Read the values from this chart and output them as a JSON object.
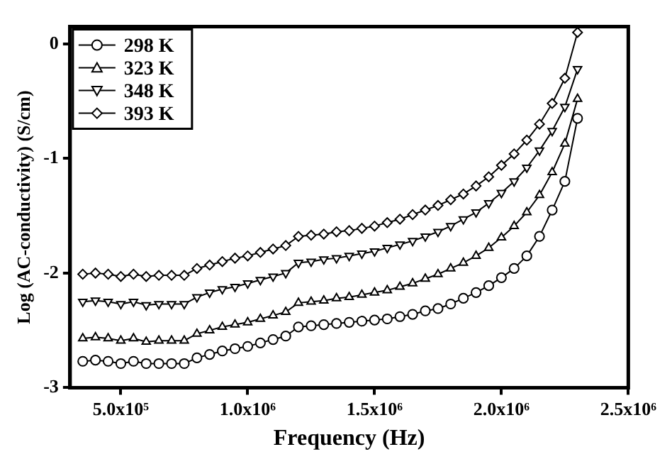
{
  "chart_data": {
    "type": "line",
    "xlabel": "Frequency (Hz)",
    "ylabel": "Log (AC-conductivity) (S/cm)",
    "x": [
      350000,
      400000,
      450000,
      500000,
      550000,
      600000,
      650000,
      700000,
      750000,
      800000,
      850000,
      900000,
      950000,
      1000000,
      1050000,
      1100000,
      1150000,
      1200000,
      1250000,
      1300000,
      1350000,
      1400000,
      1450000,
      1500000,
      1550000,
      1600000,
      1650000,
      1700000,
      1750000,
      1800000,
      1850000,
      1900000,
      1950000,
      2000000,
      2050000,
      2100000,
      2150000,
      2200000,
      2250000,
      2300000
    ],
    "series": [
      {
        "name": "298 K",
        "color": "#000000",
        "marker": "circle",
        "values": [
          -2.77,
          -2.76,
          -2.77,
          -2.79,
          -2.77,
          -2.79,
          -2.79,
          -2.79,
          -2.79,
          -2.74,
          -2.71,
          -2.68,
          -2.66,
          -2.64,
          -2.61,
          -2.58,
          -2.55,
          -2.47,
          -2.46,
          -2.45,
          -2.44,
          -2.43,
          -2.42,
          -2.41,
          -2.4,
          -2.38,
          -2.36,
          -2.33,
          -2.31,
          -2.27,
          -2.22,
          -2.17,
          -2.11,
          -2.04,
          -1.96,
          -1.85,
          -1.68,
          -1.45,
          -1.2,
          -0.65
        ]
      },
      {
        "name": "323 K",
        "color": "#000000",
        "marker": "triangle",
        "values": [
          -2.57,
          -2.56,
          -2.57,
          -2.59,
          -2.57,
          -2.6,
          -2.59,
          -2.59,
          -2.59,
          -2.53,
          -2.5,
          -2.47,
          -2.45,
          -2.43,
          -2.4,
          -2.37,
          -2.34,
          -2.26,
          -2.25,
          -2.24,
          -2.22,
          -2.21,
          -2.19,
          -2.17,
          -2.15,
          -2.12,
          -2.09,
          -2.05,
          -2.01,
          -1.96,
          -1.91,
          -1.85,
          -1.78,
          -1.69,
          -1.59,
          -1.47,
          -1.32,
          -1.12,
          -0.87,
          -0.48
        ]
      },
      {
        "name": "348 K",
        "color": "#000000",
        "marker": "triangle-down",
        "values": [
          -2.25,
          -2.24,
          -2.25,
          -2.27,
          -2.25,
          -2.28,
          -2.27,
          -2.27,
          -2.27,
          -2.21,
          -2.17,
          -2.14,
          -2.12,
          -2.09,
          -2.06,
          -2.03,
          -2.0,
          -1.91,
          -1.9,
          -1.88,
          -1.87,
          -1.85,
          -1.83,
          -1.81,
          -1.78,
          -1.75,
          -1.72,
          -1.68,
          -1.64,
          -1.59,
          -1.53,
          -1.47,
          -1.39,
          -1.3,
          -1.2,
          -1.08,
          -0.93,
          -0.76,
          -0.55,
          -0.22
        ]
      },
      {
        "name": "393 K",
        "color": "#000000",
        "marker": "diamond",
        "values": [
          -2.01,
          -2.0,
          -2.01,
          -2.03,
          -2.01,
          -2.03,
          -2.02,
          -2.02,
          -2.02,
          -1.96,
          -1.93,
          -1.9,
          -1.87,
          -1.85,
          -1.82,
          -1.79,
          -1.76,
          -1.68,
          -1.67,
          -1.66,
          -1.64,
          -1.63,
          -1.61,
          -1.59,
          -1.56,
          -1.53,
          -1.49,
          -1.45,
          -1.41,
          -1.36,
          -1.31,
          -1.24,
          -1.16,
          -1.06,
          -0.96,
          -0.84,
          -0.7,
          -0.52,
          -0.3,
          0.1
        ]
      }
    ],
    "xlim": [
      300000,
      2500000
    ],
    "xticks": [
      {
        "value": 500000,
        "label": "5.0x10⁵"
      },
      {
        "value": 1000000,
        "label": "1.0x10⁶"
      },
      {
        "value": 1500000,
        "label": "1.5x10⁶"
      },
      {
        "value": 2000000,
        "label": "2.0x10⁶"
      },
      {
        "value": 2500000,
        "label": "2.5x10⁶"
      }
    ],
    "ylim": [
      -3,
      0.15
    ],
    "yticks": [
      -3,
      -2,
      -1,
      0
    ],
    "grid": false,
    "legend": "top left",
    "line_style": "solid"
  }
}
